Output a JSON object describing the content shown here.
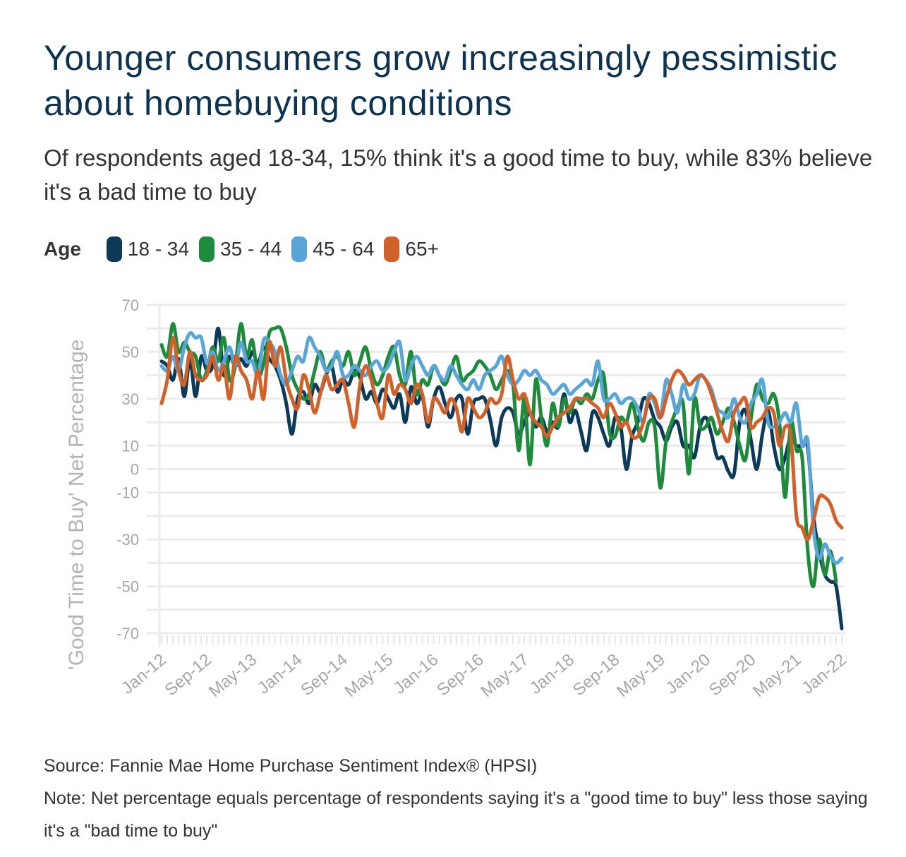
{
  "header": {
    "title": "Younger consumers grow increasingly pessimistic about homebuying conditions",
    "subtitle": "Of respondents aged 18-34, 15% think it's a good time to buy, while 83% believe it's a bad time to buy"
  },
  "legend": {
    "title": "Age",
    "items": [
      {
        "label": "18 - 34",
        "color": "#0e3a5a"
      },
      {
        "label": "35 - 44",
        "color": "#1e8a3c"
      },
      {
        "label": "45 - 64",
        "color": "#5aa5d8"
      },
      {
        "label": "65+",
        "color": "#d0612a"
      }
    ]
  },
  "footer": {
    "source": "Source: Fannie Mae Home Purchase Sentiment Index® (HPSI)",
    "note": "Note: Net percentage equals percentage of respondents saying it's a \"good time to buy\" less those saying it's a \"bad time to buy\""
  },
  "chart_data": {
    "type": "line",
    "title": "Younger consumers grow increasingly pessimistic about homebuying conditions",
    "xlabel": "",
    "ylabel": "'Good Time to Buy' Net Percentage",
    "ylim": [
      -70,
      70
    ],
    "yticks": [
      70,
      50,
      30,
      10,
      0,
      -10,
      -30,
      -50,
      -70
    ],
    "grid": true,
    "legend_position": "top-left",
    "x_start": "Jan-12",
    "x_end": "Jan-22",
    "frequency": "monthly",
    "xtick_labels": [
      "Jan-12",
      "Sep-12",
      "May-13",
      "Jan-14",
      "Sep-14",
      "May-15",
      "Jan-16",
      "Sep-16",
      "May-17",
      "Jan-18",
      "Sep-18",
      "May-19",
      "Jan-20",
      "Sep-20",
      "May-21",
      "Jan-22"
    ],
    "series": [
      {
        "name": "18 - 34",
        "color": "#0e3a5a",
        "values": [
          46,
          44,
          38,
          47,
          31,
          47,
          31,
          48,
          42,
          44,
          60,
          40,
          48,
          44,
          47,
          44,
          50,
          45,
          52,
          47,
          44,
          38,
          28,
          15,
          30,
          33,
          28,
          36,
          33,
          40,
          44,
          33,
          38,
          36,
          42,
          39,
          30,
          33,
          28,
          34,
          30,
          26,
          32,
          20,
          35,
          28,
          31,
          18,
          30,
          35,
          28,
          22,
          30,
          30,
          15,
          28,
          30,
          30,
          21,
          10,
          22,
          26,
          24,
          15,
          20,
          24,
          18,
          22,
          16,
          20,
          18,
          32,
          20,
          25,
          16,
          8,
          24,
          22,
          15,
          10,
          22,
          18,
          0,
          14,
          20,
          30,
          28,
          21,
          18,
          12,
          18,
          20,
          10,
          10,
          5,
          18,
          22,
          15,
          5,
          5,
          -1,
          -2,
          20,
          25,
          12,
          0,
          15,
          25,
          10,
          0,
          5,
          14,
          10,
          10,
          9,
          -20,
          -35,
          -45,
          -48,
          -50,
          -68
        ]
      },
      {
        "name": "35 - 44",
        "color": "#1e8a3c",
        "values": [
          53,
          48,
          62,
          50,
          54,
          50,
          48,
          38,
          42,
          52,
          46,
          56,
          38,
          44,
          62,
          48,
          55,
          40,
          45,
          58,
          60,
          60,
          52,
          40,
          34,
          30,
          32,
          42,
          50,
          42,
          46,
          48,
          44,
          50,
          40,
          46,
          52,
          42,
          36,
          40,
          48,
          52,
          40,
          36,
          50,
          32,
          38,
          36,
          44,
          40,
          36,
          42,
          48,
          38,
          40,
          42,
          46,
          44,
          40,
          34,
          38,
          42,
          36,
          8,
          30,
          2,
          38,
          22,
          10,
          28,
          18,
          30,
          24,
          30,
          28,
          32,
          30,
          38,
          40,
          16,
          14,
          22,
          20,
          28,
          18,
          12,
          20,
          18,
          -8,
          12,
          20,
          26,
          28,
          -2,
          30,
          18,
          18,
          22,
          15,
          20,
          26,
          20,
          10,
          4,
          22,
          36,
          30,
          28,
          32,
          20,
          -12,
          20,
          8,
          5,
          -35,
          -50,
          -30,
          -45,
          -35,
          -48
        ]
      },
      {
        "name": "45 - 64",
        "color": "#5aa5d8",
        "values": [
          44,
          42,
          48,
          42,
          52,
          58,
          56,
          56,
          45,
          50,
          42,
          46,
          52,
          44,
          54,
          46,
          46,
          40,
          55,
          54,
          50,
          40,
          36,
          42,
          48,
          46,
          56,
          52,
          48,
          42,
          44,
          50,
          40,
          40,
          44,
          42,
          40,
          44,
          46,
          42,
          44,
          50,
          54,
          38,
          44,
          48,
          44,
          40,
          44,
          40,
          38,
          44,
          40,
          36,
          34,
          38,
          34,
          40,
          42,
          44,
          48,
          40,
          36,
          38,
          42,
          40,
          42,
          38,
          36,
          32,
          34,
          36,
          32,
          34,
          36,
          38,
          36,
          46,
          30,
          30,
          32,
          28,
          30,
          30,
          26,
          20,
          32,
          28,
          22,
          38,
          32,
          24,
          36,
          30,
          32,
          40,
          38,
          34,
          26,
          24,
          22,
          30,
          22,
          20,
          28,
          32,
          38,
          20,
          18,
          20,
          24,
          20,
          28,
          10,
          12,
          -25,
          -38,
          -32,
          -37,
          -40,
          -38
        ]
      },
      {
        "name": "65+",
        "color": "#d0612a",
        "values": [
          28,
          38,
          56,
          42,
          36,
          50,
          40,
          38,
          40,
          48,
          38,
          44,
          30,
          48,
          42,
          38,
          30,
          42,
          30,
          54,
          44,
          52,
          38,
          30,
          26,
          40,
          34,
          24,
          32,
          40,
          34,
          36,
          38,
          28,
          18,
          36,
          44,
          38,
          28,
          22,
          40,
          32,
          36,
          34,
          28,
          36,
          32,
          20,
          30,
          28,
          24,
          30,
          26,
          16,
          30,
          26,
          22,
          24,
          30,
          28,
          32,
          48,
          38,
          30,
          32,
          24,
          20,
          18,
          14,
          18,
          22,
          24,
          26,
          30,
          30,
          30,
          28,
          26,
          22,
          28,
          24,
          18,
          20,
          14,
          14,
          20,
          30,
          30,
          22,
          30,
          38,
          42,
          40,
          36,
          38,
          40,
          38,
          32,
          24,
          16,
          12,
          24,
          28,
          30,
          18,
          20,
          22,
          26,
          24,
          10,
          18,
          14,
          -20,
          -25,
          -30,
          -22,
          -12,
          -12,
          -15,
          -22,
          -25
        ]
      }
    ]
  }
}
